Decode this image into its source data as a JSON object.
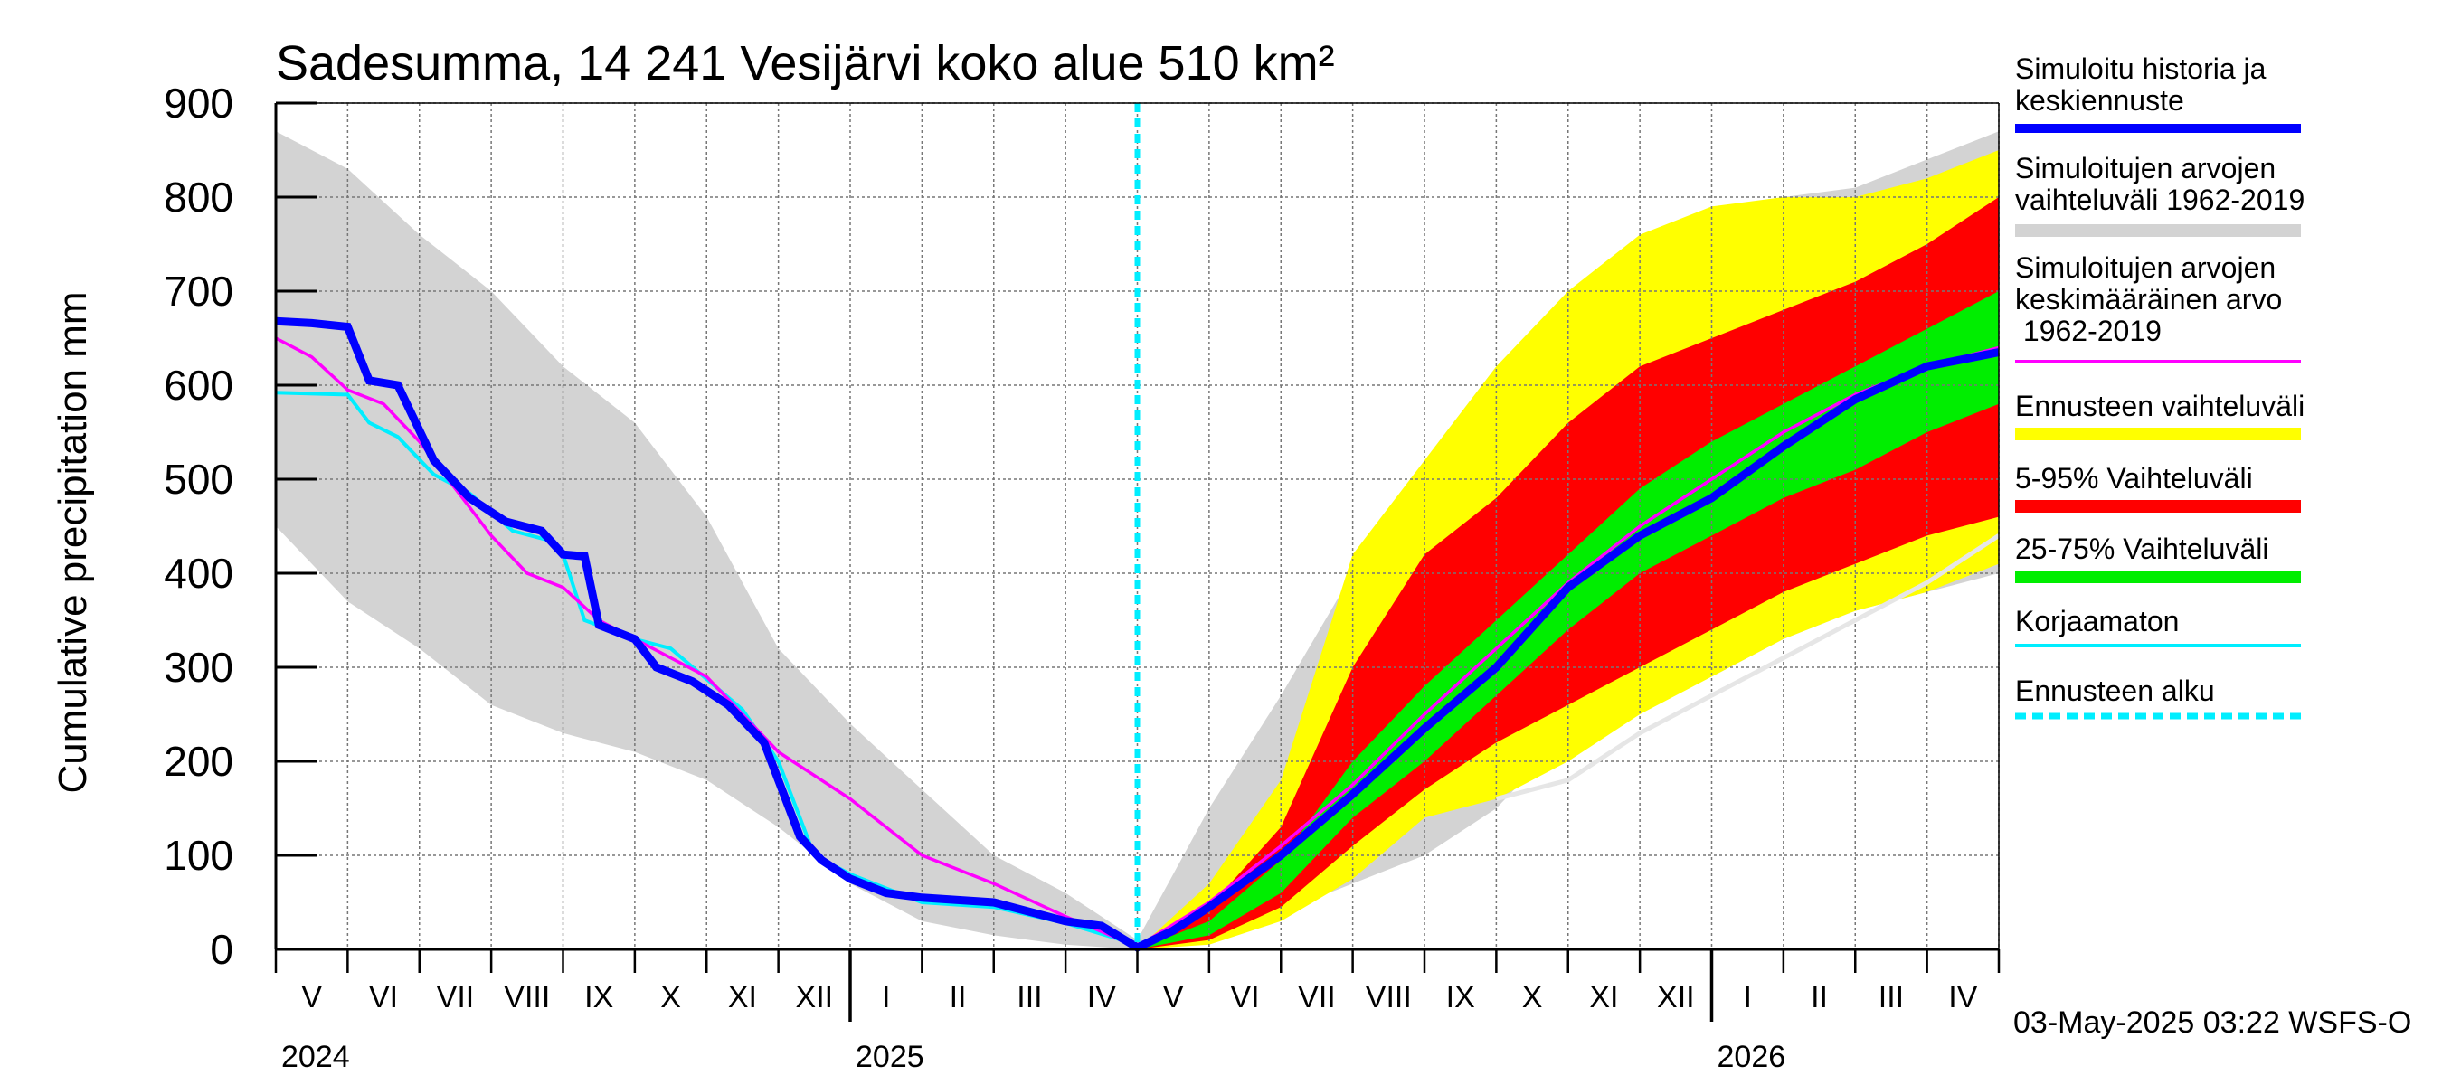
{
  "chart_data": {
    "type": "area",
    "title": "Sadesumma, 14 241 Vesijärvi koko alue 510 km²",
    "ylabel": "Cumulative precipitation   mm",
    "ylim": [
      0,
      900
    ],
    "yticks": [
      0,
      100,
      200,
      300,
      400,
      500,
      600,
      700,
      800,
      900
    ],
    "x_range_months": [
      0,
      24
    ],
    "forecast_start_month": 12,
    "month_labels": [
      "V",
      "VI",
      "VII",
      "VIII",
      "IX",
      "X",
      "XI",
      "XII",
      "I",
      "II",
      "III",
      "IV",
      "V",
      "VI",
      "VII",
      "VIII",
      "IX",
      "X",
      "XI",
      "XII",
      "I",
      "II",
      "III",
      "IV"
    ],
    "year_labels": [
      {
        "label": "2024",
        "month": 0
      },
      {
        "label": "2025",
        "month": 8
      },
      {
        "label": "2026",
        "month": 20
      }
    ],
    "timestamp": "03-May-2025 03:22 WSFS-O",
    "colors": {
      "history": "#0000ff",
      "sim_range": "#d3d3d3",
      "sim_mean": "#ff00ff",
      "forecast_range": "#ffff00",
      "p5_95": "#ff0000",
      "p25_75": "#00ee00",
      "uncorrected": "#00eeff",
      "forecast_start": "#00eeff"
    },
    "legend": [
      {
        "label": "Simuloitu historia ja keskiennuste",
        "style": "thick-line",
        "color": "#0000ff"
      },
      {
        "label": "Simuloitujen arvojen vaihteluväli 1962-2019",
        "style": "band",
        "color": "#d3d3d3"
      },
      {
        "label": "Simuloitujen arvojen keskimääräinen arvo 1962-2019",
        "style": "line",
        "color": "#ff00ff"
      },
      {
        "label": "Ennusteen vaihteluväli",
        "style": "band",
        "color": "#ffff00"
      },
      {
        "label": "5-95% Vaihteluväli",
        "style": "band",
        "color": "#ff0000"
      },
      {
        "label": "25-75% Vaihteluväli",
        "style": "band",
        "color": "#00ee00"
      },
      {
        "label": "Korjaamaton",
        "style": "line",
        "color": "#00eeff"
      },
      {
        "label": "Ennusteen alku",
        "style": "dashed",
        "color": "#00eeff"
      }
    ],
    "series": {
      "sim_range_upper": [
        [
          0,
          870
        ],
        [
          1,
          830
        ],
        [
          2,
          760
        ],
        [
          3,
          700
        ],
        [
          4,
          620
        ],
        [
          5,
          560
        ],
        [
          6,
          460
        ],
        [
          7,
          320
        ],
        [
          8,
          240
        ],
        [
          9,
          170
        ],
        [
          10,
          100
        ],
        [
          11,
          60
        ],
        [
          12,
          10
        ],
        [
          13,
          150
        ],
        [
          14,
          270
        ],
        [
          15,
          400
        ],
        [
          16,
          520
        ],
        [
          17,
          620
        ],
        [
          18,
          690
        ],
        [
          19,
          740
        ],
        [
          20,
          780
        ],
        [
          21,
          800
        ],
        [
          22,
          810
        ],
        [
          23,
          840
        ],
        [
          24,
          870
        ]
      ],
      "sim_range_lower": [
        [
          0,
          450
        ],
        [
          1,
          370
        ],
        [
          2,
          320
        ],
        [
          3,
          260
        ],
        [
          4,
          230
        ],
        [
          5,
          210
        ],
        [
          6,
          180
        ],
        [
          7,
          130
        ],
        [
          8,
          70
        ],
        [
          9,
          30
        ],
        [
          10,
          15
        ],
        [
          11,
          5
        ],
        [
          12,
          0
        ],
        [
          13,
          15
        ],
        [
          14,
          40
        ],
        [
          15,
          70
        ],
        [
          16,
          100
        ],
        [
          17,
          150
        ],
        [
          18,
          230
        ],
        [
          19,
          270
        ],
        [
          20,
          290
        ],
        [
          21,
          330
        ],
        [
          22,
          360
        ],
        [
          23,
          380
        ],
        [
          24,
          400
        ]
      ],
      "forecast_upper": [
        [
          12,
          0
        ],
        [
          13,
          70
        ],
        [
          14,
          180
        ],
        [
          15,
          420
        ],
        [
          16,
          520
        ],
        [
          17,
          620
        ],
        [
          18,
          700
        ],
        [
          19,
          760
        ],
        [
          20,
          790
        ],
        [
          21,
          800
        ],
        [
          22,
          800
        ],
        [
          23,
          820
        ],
        [
          24,
          850
        ]
      ],
      "forecast_lower": [
        [
          12,
          0
        ],
        [
          13,
          5
        ],
        [
          14,
          30
        ],
        [
          15,
          75
        ],
        [
          16,
          140
        ],
        [
          17,
          160
        ],
        [
          18,
          200
        ],
        [
          19,
          250
        ],
        [
          20,
          290
        ],
        [
          21,
          330
        ],
        [
          22,
          360
        ],
        [
          23,
          380
        ],
        [
          24,
          410
        ]
      ],
      "p95": [
        [
          12,
          0
        ],
        [
          13,
          45
        ],
        [
          14,
          130
        ],
        [
          15,
          300
        ],
        [
          16,
          420
        ],
        [
          17,
          480
        ],
        [
          18,
          560
        ],
        [
          19,
          620
        ],
        [
          20,
          650
        ],
        [
          21,
          680
        ],
        [
          22,
          710
        ],
        [
          23,
          750
        ],
        [
          24,
          800
        ]
      ],
      "p5": [
        [
          12,
          0
        ],
        [
          13,
          10
        ],
        [
          14,
          45
        ],
        [
          15,
          110
        ],
        [
          16,
          170
        ],
        [
          17,
          220
        ],
        [
          18,
          260
        ],
        [
          19,
          300
        ],
        [
          20,
          340
        ],
        [
          21,
          380
        ],
        [
          22,
          410
        ],
        [
          23,
          440
        ],
        [
          24,
          460
        ]
      ],
      "p75": [
        [
          12,
          0
        ],
        [
          13,
          30
        ],
        [
          14,
          95
        ],
        [
          15,
          200
        ],
        [
          16,
          280
        ],
        [
          17,
          350
        ],
        [
          18,
          420
        ],
        [
          19,
          490
        ],
        [
          20,
          540
        ],
        [
          21,
          580
        ],
        [
          22,
          620
        ],
        [
          23,
          660
        ],
        [
          24,
          700
        ]
      ],
      "p25": [
        [
          12,
          0
        ],
        [
          13,
          15
        ],
        [
          14,
          60
        ],
        [
          15,
          140
        ],
        [
          16,
          200
        ],
        [
          17,
          270
        ],
        [
          18,
          340
        ],
        [
          19,
          400
        ],
        [
          20,
          440
        ],
        [
          21,
          480
        ],
        [
          22,
          510
        ],
        [
          23,
          550
        ],
        [
          24,
          580
        ]
      ],
      "history": [
        [
          0,
          668
        ],
        [
          0.5,
          666
        ],
        [
          1,
          662
        ],
        [
          1.3,
          605
        ],
        [
          1.7,
          600
        ],
        [
          2.2,
          520
        ],
        [
          2.7,
          480
        ],
        [
          3.2,
          455
        ],
        [
          3.7,
          445
        ],
        [
          4,
          420
        ],
        [
          4.3,
          418
        ],
        [
          4.5,
          345
        ],
        [
          5,
          330
        ],
        [
          5.3,
          300
        ],
        [
          5.8,
          285
        ],
        [
          6.3,
          260
        ],
        [
          6.8,
          220
        ],
        [
          7,
          180
        ],
        [
          7.3,
          120
        ],
        [
          7.6,
          95
        ],
        [
          8,
          75
        ],
        [
          8.5,
          60
        ],
        [
          9,
          55
        ],
        [
          10,
          50
        ],
        [
          11,
          30
        ],
        [
          11.5,
          25
        ],
        [
          12,
          2
        ],
        [
          12.5,
          20
        ],
        [
          13,
          45
        ],
        [
          14,
          100
        ],
        [
          15,
          165
        ],
        [
          16,
          235
        ],
        [
          17,
          300
        ],
        [
          18,
          385
        ],
        [
          19,
          440
        ],
        [
          20,
          480
        ],
        [
          21,
          535
        ],
        [
          22,
          585
        ],
        [
          23,
          620
        ],
        [
          24,
          635
        ]
      ],
      "sim_mean": [
        [
          0,
          650
        ],
        [
          0.5,
          630
        ],
        [
          1,
          595
        ],
        [
          1.5,
          580
        ],
        [
          2,
          540
        ],
        [
          2.5,
          490
        ],
        [
          3,
          440
        ],
        [
          3.5,
          400
        ],
        [
          4,
          385
        ],
        [
          4.5,
          350
        ],
        [
          5,
          330
        ],
        [
          6,
          290
        ],
        [
          7,
          210
        ],
        [
          8,
          160
        ],
        [
          9,
          100
        ],
        [
          10,
          70
        ],
        [
          11,
          35
        ],
        [
          12,
          3
        ],
        [
          13,
          50
        ],
        [
          14,
          110
        ],
        [
          15,
          175
        ],
        [
          16,
          250
        ],
        [
          17,
          320
        ],
        [
          18,
          390
        ],
        [
          19,
          450
        ],
        [
          20,
          500
        ],
        [
          21,
          550
        ],
        [
          22,
          590
        ],
        [
          23,
          620
        ],
        [
          24,
          640
        ]
      ],
      "uncorrected": [
        [
          0,
          592
        ],
        [
          1,
          590
        ],
        [
          1.3,
          560
        ],
        [
          1.7,
          545
        ],
        [
          2.2,
          505
        ],
        [
          2.7,
          485
        ],
        [
          3.3,
          445
        ],
        [
          3.8,
          435
        ],
        [
          4,
          420
        ],
        [
          4.3,
          350
        ],
        [
          5,
          330
        ],
        [
          5.5,
          320
        ],
        [
          6.5,
          255
        ],
        [
          7,
          200
        ],
        [
          7.5,
          100
        ],
        [
          8,
          80
        ],
        [
          9,
          50
        ],
        [
          10,
          45
        ],
        [
          11,
          28
        ],
        [
          12,
          5
        ]
      ],
      "sim_history_line": [
        [
          17,
          160
        ],
        [
          18,
          180
        ],
        [
          19,
          230
        ],
        [
          20,
          270
        ],
        [
          21,
          310
        ],
        [
          22,
          350
        ],
        [
          23,
          390
        ],
        [
          24,
          440
        ]
      ]
    }
  }
}
